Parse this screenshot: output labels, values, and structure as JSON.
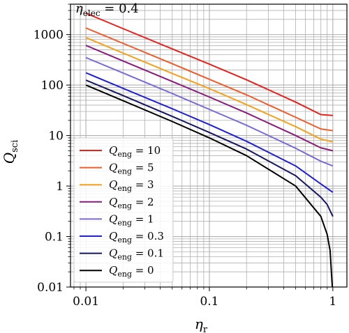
{
  "chart_data": {
    "type": "line",
    "title": {
      "var": "η",
      "sub": "elec",
      "rest": " = 0.4"
    },
    "xlabel": {
      "var": "η",
      "sub": "r"
    },
    "ylabel": {
      "var": "Q",
      "sub": "sci"
    },
    "xscale": "log",
    "yscale": "log",
    "xlim": [
      0.0075,
      1.3
    ],
    "ylim": [
      0.01,
      4000
    ],
    "xticks": [
      {
        "value": 0.01,
        "label": "0.01"
      },
      {
        "value": 0.1,
        "label": "0.1"
      },
      {
        "value": 1,
        "label": "1"
      }
    ],
    "yticks": [
      {
        "value": 0.01,
        "label": "0.01"
      },
      {
        "value": 0.1,
        "label": "0.1"
      },
      {
        "value": 1,
        "label": "1"
      },
      {
        "value": 10,
        "label": "10"
      },
      {
        "value": 100,
        "label": "100"
      },
      {
        "value": 1000,
        "label": "1000"
      }
    ],
    "grid": true,
    "legend_position": "lower-left",
    "legend_var": "Q",
    "legend_sub": "eng",
    "series": [
      {
        "label": " = 10",
        "color": "#e8211e",
        "x": [
          0.01,
          0.02,
          0.05,
          0.1,
          0.2,
          0.5,
          0.8,
          1.0
        ],
        "y": [
          2650,
          1310,
          520,
          260,
          127,
          46,
          26,
          25
        ]
      },
      {
        "label": " = 5",
        "color": "#f25a2a",
        "x": [
          0.01,
          0.02,
          0.05,
          0.1,
          0.2,
          0.5,
          0.8,
          1.0
        ],
        "y": [
          1350,
          670,
          265,
          130,
          64,
          23,
          13.5,
          12.5
        ]
      },
      {
        "label": " = 3",
        "color": "#f4a11d",
        "x": [
          0.01,
          0.02,
          0.05,
          0.1,
          0.2,
          0.5,
          0.8,
          1.0
        ],
        "y": [
          870,
          430,
          170,
          85,
          41,
          15,
          8.5,
          7.5
        ]
      },
      {
        "label": " = 2",
        "color": "#8b1a7d",
        "x": [
          0.01,
          0.02,
          0.05,
          0.1,
          0.2,
          0.5,
          0.8,
          1.0
        ],
        "y": [
          610,
          300,
          118,
          58,
          28,
          10,
          5.7,
          5
        ]
      },
      {
        "label": " = 1",
        "color": "#7a6ad8",
        "x": [
          0.01,
          0.02,
          0.05,
          0.1,
          0.2,
          0.5,
          0.8,
          1.0
        ],
        "y": [
          350,
          173,
          68,
          33,
          16,
          5.6,
          3.1,
          2.5
        ]
      },
      {
        "label": " = 0.3",
        "color": "#1f1fd6",
        "x": [
          0.01,
          0.02,
          0.05,
          0.1,
          0.2,
          0.5,
          0.8,
          1.0
        ],
        "y": [
          175,
          86,
          34,
          16.5,
          7.7,
          2.5,
          1.1,
          0.75
        ]
      },
      {
        "label": " = 0.1",
        "color": "#151563",
        "x": [
          0.01,
          0.02,
          0.05,
          0.1,
          0.2,
          0.5,
          0.8,
          0.9,
          1.0
        ],
        "y": [
          125,
          62,
          24,
          11.5,
          5.4,
          1.6,
          0.6,
          0.43,
          0.25
        ]
      },
      {
        "label": " = 0",
        "color": "#000000",
        "x": [
          0.01,
          0.02,
          0.05,
          0.1,
          0.2,
          0.5,
          0.8,
          0.9,
          0.95,
          0.99,
          0.999
        ],
        "y": [
          100,
          49,
          19,
          9,
          4,
          1,
          0.25,
          0.11,
          0.053,
          0.0101,
          0.001
        ]
      }
    ]
  }
}
